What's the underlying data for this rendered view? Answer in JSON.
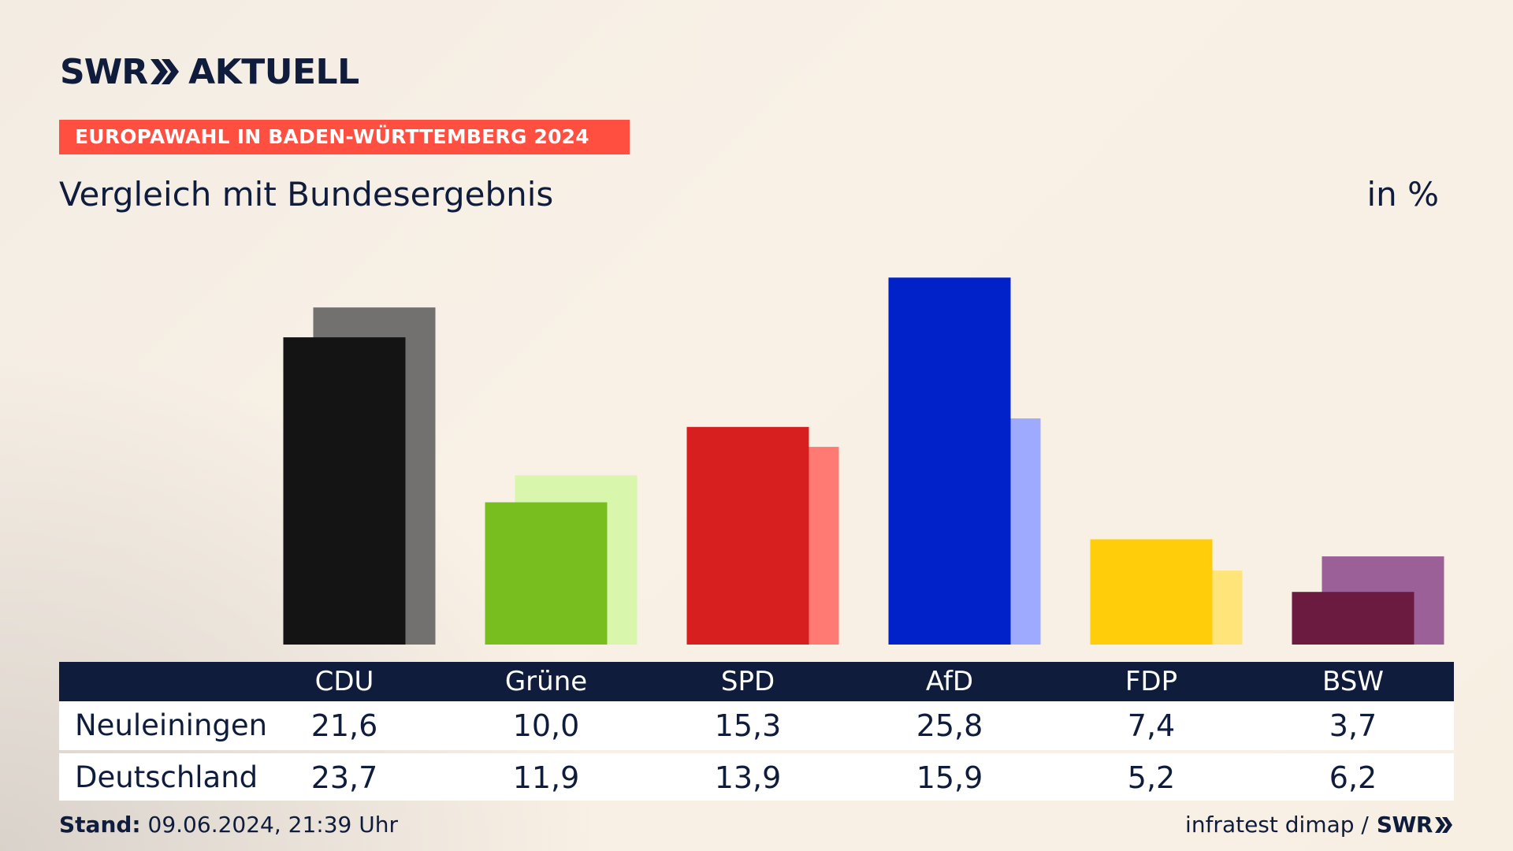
{
  "brand": {
    "logo_left": "SWR",
    "logo_right": "AKTUELL",
    "footer_logo": "SWR"
  },
  "tag": "EUROPAWAHL IN BADEN-WÜRTTEMBERG 2024",
  "subtitle": "Vergleich mit Bundesergebnis",
  "unit": "in %",
  "stand_label": "Stand:",
  "stand_value": "09.06.2024, 21:39 Uhr",
  "source": "infratest dimap /",
  "chart_data": {
    "type": "bar",
    "categories": [
      "CDU",
      "Grüne",
      "SPD",
      "AfD",
      "FDP",
      "BSW"
    ],
    "series": [
      {
        "name": "Neuleiningen",
        "values": [
          21.6,
          10.0,
          15.3,
          25.8,
          7.4,
          3.7
        ],
        "display": [
          "21,6",
          "10,0",
          "15,3",
          "25,8",
          "7,4",
          "3,7"
        ],
        "colors": [
          "#141414",
          "#78be1e",
          "#d81f1f",
          "#0022c8",
          "#ffcd0a",
          "#6b1a40"
        ]
      },
      {
        "name": "Deutschland",
        "values": [
          23.7,
          11.9,
          13.9,
          15.9,
          5.2,
          6.2
        ],
        "display": [
          "23,7",
          "11,9",
          "13,9",
          "15,9",
          "5,2",
          "6,2"
        ],
        "colors": [
          "#727170",
          "#d8f7ad",
          "#ff7a72",
          "#9daafd",
          "#ffe47a",
          "#9c6098"
        ]
      }
    ],
    "ylim": [
      0,
      27.2
    ],
    "grid": false,
    "legend": "table-below"
  }
}
